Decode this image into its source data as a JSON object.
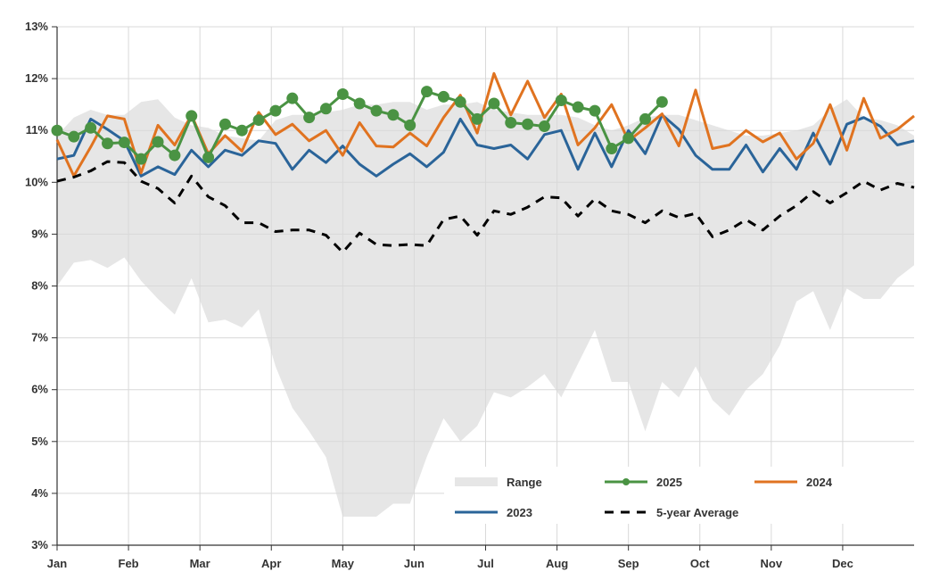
{
  "chart_data": {
    "type": "line",
    "title": "",
    "xlabel": "",
    "ylabel": "",
    "x_tick_labels": [
      "Jan",
      "Feb",
      "Mar",
      "Apr",
      "May",
      "Jun",
      "Jul",
      "Aug",
      "Sep",
      "Oct",
      "Nov",
      "Dec"
    ],
    "y_tick_labels": [
      "3%",
      "4%",
      "5%",
      "6%",
      "7%",
      "8%",
      "9%",
      "10%",
      "11%",
      "12%",
      "13%"
    ],
    "x_range": [
      1,
      52
    ],
    "ylim": [
      3,
      13
    ],
    "grid": true,
    "legend_position": "bottom-right",
    "colors": {
      "range": "#e6e6e6",
      "s2025": "#4a9343",
      "s2024": "#e07320",
      "s2023": "#2a6499",
      "avg": "#000000"
    },
    "legend": [
      {
        "label": "Range",
        "key": "range"
      },
      {
        "label": "2025",
        "key": "s2025"
      },
      {
        "label": "2024",
        "key": "s2024"
      },
      {
        "label": "2023",
        "key": "s2023"
      },
      {
        "label": "5-year Average",
        "key": "avg"
      }
    ],
    "range": {
      "upper": [
        10.9,
        11.25,
        11.4,
        11.3,
        11.3,
        11.55,
        11.6,
        11.25,
        11.1,
        11.05,
        10.9,
        10.85,
        10.8,
        11.2,
        11.3,
        11.3,
        11.35,
        11.4,
        11.5,
        11.5,
        11.55,
        11.55,
        11.4,
        11.5,
        11.5,
        11.55,
        11.4,
        11.35,
        11.3,
        11.3,
        11.3,
        11.25,
        11.1,
        11.0,
        11.1,
        11.25,
        11.3,
        11.3,
        11.2,
        11.1,
        11.0,
        10.9,
        10.9,
        10.95,
        11.0,
        11.1,
        11.4,
        11.6,
        11.25,
        11.2,
        11.1,
        10.9
      ],
      "lower": [
        8.0,
        8.45,
        8.5,
        8.35,
        8.55,
        8.1,
        7.75,
        7.45,
        8.15,
        7.3,
        7.35,
        7.2,
        7.55,
        6.45,
        5.65,
        5.2,
        4.7,
        3.55,
        3.55,
        3.55,
        3.8,
        3.8,
        4.7,
        5.45,
        5.0,
        5.3,
        5.95,
        5.85,
        6.05,
        6.3,
        5.85,
        6.5,
        7.15,
        6.15,
        6.15,
        5.2,
        6.15,
        5.85,
        6.45,
        5.8,
        5.5,
        6.0,
        6.3,
        6.85,
        7.7,
        7.9,
        7.15,
        7.95,
        7.75,
        7.75,
        8.15,
        8.4
      ]
    },
    "series": [
      {
        "name": "2025",
        "key": "s2025",
        "markers": true,
        "values": [
          11.0,
          10.88,
          11.05,
          10.75,
          10.77,
          10.45,
          10.78,
          10.52,
          11.28,
          10.48,
          11.12,
          11.0,
          11.2,
          11.38,
          11.62,
          11.25,
          11.42,
          11.7,
          11.52,
          11.38,
          11.3,
          11.1,
          11.75,
          11.65,
          11.55,
          11.22,
          11.52,
          11.15,
          11.12,
          11.08,
          11.58,
          11.45,
          11.38,
          10.65,
          10.85,
          11.22,
          11.55
        ]
      },
      {
        "name": "2024",
        "key": "s2024",
        "markers": false,
        "values": [
          10.82,
          10.12,
          10.68,
          11.28,
          11.22,
          10.18,
          11.1,
          10.72,
          11.3,
          10.55,
          10.9,
          10.6,
          11.35,
          10.92,
          11.12,
          10.8,
          11.0,
          10.52,
          11.15,
          10.7,
          10.68,
          10.95,
          10.7,
          11.25,
          11.68,
          10.95,
          12.1,
          11.3,
          11.95,
          11.25,
          11.7,
          10.72,
          11.05,
          11.5,
          10.8,
          11.05,
          11.32,
          10.7,
          11.78,
          10.65,
          10.72,
          11.0,
          10.78,
          10.95,
          10.45,
          10.75,
          11.5,
          10.62,
          11.62,
          10.85,
          11.02,
          11.28
        ]
      },
      {
        "name": "2023",
        "key": "s2023",
        "markers": false,
        "values": [
          10.45,
          10.52,
          11.22,
          11.02,
          10.8,
          10.12,
          10.3,
          10.15,
          10.62,
          10.3,
          10.62,
          10.52,
          10.8,
          10.75,
          10.25,
          10.62,
          10.38,
          10.7,
          10.35,
          10.12,
          10.35,
          10.55,
          10.3,
          10.58,
          11.22,
          10.72,
          10.65,
          10.72,
          10.45,
          10.92,
          11.0,
          10.25,
          10.95,
          10.3,
          11.0,
          10.55,
          11.3,
          11.02,
          10.52,
          10.25,
          10.25,
          10.72,
          10.2,
          10.65,
          10.25,
          10.95,
          10.35,
          11.12,
          11.25,
          11.08,
          10.72,
          10.8
        ]
      },
      {
        "name": "5-year Average",
        "key": "avg",
        "markers": false,
        "dashed": true,
        "values": [
          10.02,
          10.1,
          10.22,
          10.4,
          10.38,
          10.02,
          9.88,
          9.6,
          10.12,
          9.72,
          9.55,
          9.22,
          9.22,
          9.05,
          9.08,
          9.08,
          8.98,
          8.65,
          9.02,
          8.8,
          8.78,
          8.8,
          8.78,
          9.28,
          9.35,
          8.98,
          9.45,
          9.38,
          9.52,
          9.72,
          9.7,
          9.35,
          9.68,
          9.45,
          9.38,
          9.22,
          9.45,
          9.32,
          9.4,
          8.95,
          9.08,
          9.28,
          9.08,
          9.35,
          9.55,
          9.82,
          9.6,
          9.8,
          10.02,
          9.85,
          9.98,
          9.9
        ]
      }
    ]
  }
}
